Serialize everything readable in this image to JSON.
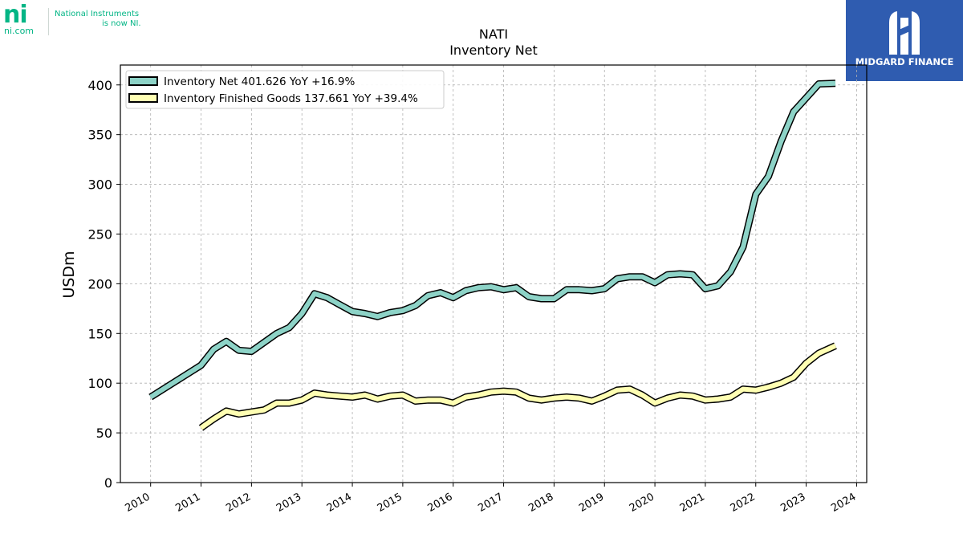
{
  "brand_left": {
    "mark": "ni",
    "site": "ni.com",
    "line1": "National Instruments",
    "line2": "is now NI."
  },
  "brand_right": {
    "name": "MIDGARD FINANCE",
    "color": "#2f5cb0"
  },
  "chart_data": {
    "type": "line",
    "title": "NATI",
    "subtitle": "Inventory Net",
    "xlabel": "",
    "ylabel": "USDm",
    "xlim": [
      2009.4,
      2024.2
    ],
    "ylim": [
      0,
      420
    ],
    "x_ticks": [
      "2010",
      "2011",
      "2012",
      "2013",
      "2014",
      "2015",
      "2016",
      "2017",
      "2018",
      "2019",
      "2020",
      "2021",
      "2022",
      "2023",
      "2024"
    ],
    "y_ticks": [
      0,
      50,
      100,
      150,
      200,
      250,
      300,
      350,
      400
    ],
    "grid": true,
    "legend_position": "top-left",
    "series": [
      {
        "name": "Inventory Net",
        "legend_label": "Inventory Net  401.626 YoY +16.9%",
        "color": "#8dd3c7",
        "points": [
          [
            2010.0,
            86
          ],
          [
            2011.0,
            118
          ],
          [
            2011.25,
            134
          ],
          [
            2011.5,
            142
          ],
          [
            2011.75,
            133
          ],
          [
            2012.0,
            132
          ],
          [
            2012.25,
            141
          ],
          [
            2012.5,
            150
          ],
          [
            2012.75,
            156
          ],
          [
            2013.0,
            170
          ],
          [
            2013.25,
            190
          ],
          [
            2013.5,
            186
          ],
          [
            2013.75,
            179
          ],
          [
            2014.0,
            172
          ],
          [
            2014.25,
            170
          ],
          [
            2014.5,
            167
          ],
          [
            2014.75,
            171
          ],
          [
            2015.0,
            173
          ],
          [
            2015.25,
            178
          ],
          [
            2015.5,
            188
          ],
          [
            2015.75,
            191
          ],
          [
            2016.0,
            186
          ],
          [
            2016.25,
            193
          ],
          [
            2016.5,
            196
          ],
          [
            2016.75,
            197
          ],
          [
            2017.0,
            194
          ],
          [
            2017.25,
            196
          ],
          [
            2017.5,
            187
          ],
          [
            2017.75,
            185
          ],
          [
            2018.0,
            185
          ],
          [
            2018.25,
            194
          ],
          [
            2018.5,
            194
          ],
          [
            2018.75,
            193
          ],
          [
            2019.0,
            195
          ],
          [
            2019.25,
            205
          ],
          [
            2019.5,
            207
          ],
          [
            2019.75,
            207
          ],
          [
            2020.0,
            201
          ],
          [
            2020.25,
            209
          ],
          [
            2020.5,
            210
          ],
          [
            2020.75,
            209
          ],
          [
            2021.0,
            195
          ],
          [
            2021.25,
            198
          ],
          [
            2021.5,
            212
          ],
          [
            2021.75,
            237
          ],
          [
            2022.0,
            290
          ],
          [
            2022.25,
            308
          ],
          [
            2022.5,
            343
          ],
          [
            2022.75,
            373
          ],
          [
            2023.0,
            387
          ],
          [
            2023.25,
            401
          ],
          [
            2023.58,
            401.626
          ]
        ]
      },
      {
        "name": "Inventory Finished Goods",
        "legend_label": "Inventory Finished Goods  137.661 YoY +39.4%",
        "color": "#ffffb3",
        "points": [
          [
            2011.0,
            55
          ],
          [
            2011.25,
            64
          ],
          [
            2011.5,
            72
          ],
          [
            2011.75,
            69
          ],
          [
            2012.0,
            71
          ],
          [
            2012.25,
            73
          ],
          [
            2012.5,
            80
          ],
          [
            2012.75,
            80
          ],
          [
            2013.0,
            83
          ],
          [
            2013.25,
            90
          ],
          [
            2013.5,
            88
          ],
          [
            2013.75,
            87
          ],
          [
            2014.0,
            86
          ],
          [
            2014.25,
            88
          ],
          [
            2014.5,
            84
          ],
          [
            2014.75,
            87
          ],
          [
            2015.0,
            88
          ],
          [
            2015.25,
            82
          ],
          [
            2015.5,
            83
          ],
          [
            2015.75,
            83
          ],
          [
            2016.0,
            80
          ],
          [
            2016.25,
            86
          ],
          [
            2016.5,
            88
          ],
          [
            2016.75,
            91
          ],
          [
            2017.0,
            92
          ],
          [
            2017.25,
            91
          ],
          [
            2017.5,
            85
          ],
          [
            2017.75,
            83
          ],
          [
            2018.0,
            85
          ],
          [
            2018.25,
            86
          ],
          [
            2018.5,
            85
          ],
          [
            2018.75,
            82
          ],
          [
            2019.0,
            87
          ],
          [
            2019.25,
            93
          ],
          [
            2019.5,
            94
          ],
          [
            2019.75,
            88
          ],
          [
            2020.0,
            80
          ],
          [
            2020.25,
            85
          ],
          [
            2020.5,
            88
          ],
          [
            2020.75,
            87
          ],
          [
            2021.0,
            83
          ],
          [
            2021.25,
            84
          ],
          [
            2021.5,
            86
          ],
          [
            2021.75,
            94
          ],
          [
            2022.0,
            93
          ],
          [
            2022.25,
            96
          ],
          [
            2022.5,
            100
          ],
          [
            2022.75,
            106
          ],
          [
            2023.0,
            120
          ],
          [
            2023.25,
            130
          ],
          [
            2023.58,
            137.661
          ]
        ]
      }
    ]
  }
}
